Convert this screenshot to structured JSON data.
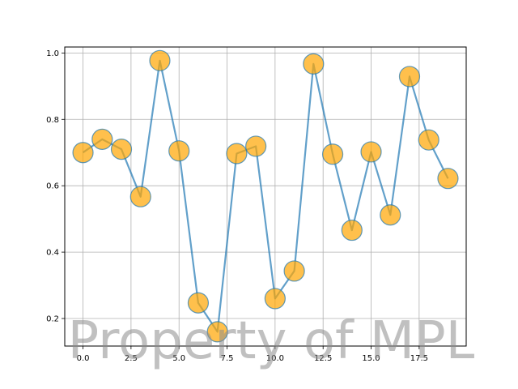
{
  "chart_data": {
    "type": "line",
    "title": "",
    "xlabel": "",
    "ylabel": "",
    "xlim": [
      -0.95,
      19.95
    ],
    "ylim": [
      0.117,
      1.018
    ],
    "grid": true,
    "x": [
      0,
      1,
      2,
      3,
      4,
      5,
      6,
      7,
      8,
      9,
      10,
      11,
      12,
      13,
      14,
      15,
      16,
      17,
      18,
      19
    ],
    "series": [
      {
        "values": [
          0.7,
          0.74,
          0.71,
          0.567,
          0.977,
          0.705,
          0.247,
          0.16,
          0.697,
          0.719,
          0.26,
          0.343,
          0.967,
          0.695,
          0.466,
          0.702,
          0.512,
          0.929,
          0.738,
          0.622
        ],
        "line_color": "#1f77b4",
        "marker_color": "#ffa500",
        "marker_edge_color": "#1f77b4"
      }
    ],
    "x_ticks": [
      {
        "value": 0.0,
        "label": "0.0"
      },
      {
        "value": 2.5,
        "label": "2.5"
      },
      {
        "value": 5.0,
        "label": "5.0"
      },
      {
        "value": 7.5,
        "label": "7.5"
      },
      {
        "value": 10.0,
        "label": "10.0"
      },
      {
        "value": 12.5,
        "label": "12.5"
      },
      {
        "value": 15.0,
        "label": "15.0"
      },
      {
        "value": 17.5,
        "label": "17.5"
      }
    ],
    "y_ticks": [
      {
        "value": 0.2,
        "label": "0.2"
      },
      {
        "value": 0.4,
        "label": "0.4"
      },
      {
        "value": 0.6,
        "label": "0.6"
      },
      {
        "value": 0.8,
        "label": "0.8"
      },
      {
        "value": 1.0,
        "label": "1.0"
      }
    ],
    "watermark": "Property of MPL"
  }
}
